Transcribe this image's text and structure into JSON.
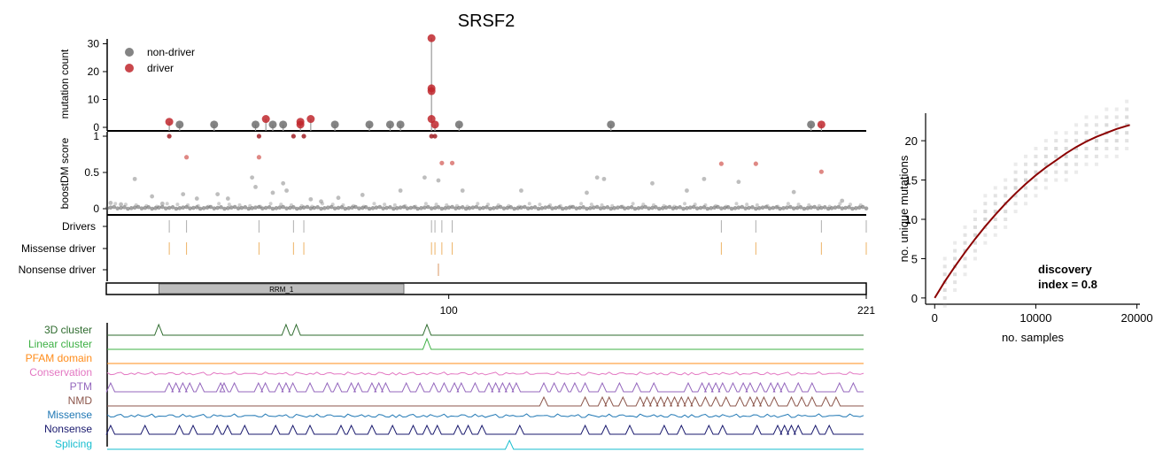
{
  "title": "SRSF2",
  "colors": {
    "nondriver": "#6e6e6e",
    "driver": "#c0272d",
    "missense": "#e9a040",
    "nonsense": "#d07a3a",
    "domain_fill": "#bdbdbd",
    "curve": "#8b0000",
    "tracks": {
      "3D cluster": "#2e6b2e",
      "Linear cluster": "#3cb043",
      "PFAM domain": "#ff8c1a",
      "Conservation": "#e377c2",
      "PTM": "#9467bd",
      "NMD": "#8c564b",
      "Missense": "#1f77b4",
      "Nonsense": "#1a1a6e",
      "Splicing": "#17becf"
    }
  },
  "chart_data": [
    {
      "type": "scatter",
      "name": "mutation-lollipop",
      "ylabel": "mutation count",
      "yticks": [
        0,
        10,
        20,
        30
      ],
      "xlim": [
        1,
        221
      ],
      "ylim": [
        0,
        33
      ],
      "legend": {
        "placement": "top-left",
        "entries": [
          "non-driver",
          "driver"
        ]
      },
      "points": [
        {
          "pos": 19,
          "count": 2,
          "driver": true
        },
        {
          "pos": 22,
          "count": 1,
          "driver": false
        },
        {
          "pos": 32,
          "count": 1,
          "driver": false
        },
        {
          "pos": 44,
          "count": 1,
          "driver": false
        },
        {
          "pos": 47,
          "count": 3,
          "driver": true
        },
        {
          "pos": 49,
          "count": 1,
          "driver": false
        },
        {
          "pos": 52,
          "count": 1,
          "driver": false
        },
        {
          "pos": 57,
          "count": 1,
          "driver": true
        },
        {
          "pos": 57,
          "count": 2,
          "driver": true
        },
        {
          "pos": 60,
          "count": 3,
          "driver": true
        },
        {
          "pos": 67,
          "count": 1,
          "driver": false
        },
        {
          "pos": 77,
          "count": 1,
          "driver": false
        },
        {
          "pos": 83,
          "count": 1,
          "driver": false
        },
        {
          "pos": 86,
          "count": 1,
          "driver": false
        },
        {
          "pos": 95,
          "count": 3,
          "driver": true
        },
        {
          "pos": 95,
          "count": 13,
          "driver": true
        },
        {
          "pos": 95,
          "count": 14,
          "driver": true
        },
        {
          "pos": 95,
          "count": 32,
          "driver": true
        },
        {
          "pos": 96,
          "count": 1,
          "driver": true
        },
        {
          "pos": 103,
          "count": 1,
          "driver": false
        },
        {
          "pos": 147,
          "count": 1,
          "driver": false
        },
        {
          "pos": 205,
          "count": 1,
          "driver": false
        },
        {
          "pos": 208,
          "count": 1,
          "driver": true
        }
      ]
    },
    {
      "type": "scatter",
      "name": "boostdm-score",
      "ylabel": "boostDM score",
      "yticks": [
        0,
        0.5,
        1
      ],
      "ytick_labels": [
        "0",
        "0.5",
        "1"
      ],
      "ylim": [
        -0.05,
        1.05
      ],
      "driver_points": [
        {
          "pos": 19,
          "score": 1.0
        },
        {
          "pos": 24,
          "score": 0.71
        },
        {
          "pos": 45,
          "score": 1.0
        },
        {
          "pos": 45,
          "score": 0.71
        },
        {
          "pos": 55,
          "score": 1.0
        },
        {
          "pos": 58,
          "score": 1.0
        },
        {
          "pos": 95,
          "score": 1.0
        },
        {
          "pos": 96,
          "score": 1.0
        },
        {
          "pos": 98,
          "score": 0.63
        },
        {
          "pos": 101,
          "score": 0.63
        },
        {
          "pos": 179,
          "score": 0.62
        },
        {
          "pos": 189,
          "score": 0.62
        },
        {
          "pos": 208,
          "score": 0.51
        }
      ],
      "elevated_points": [
        {
          "pos": 2,
          "score": 0.08
        },
        {
          "pos": 5,
          "score": 0.06
        },
        {
          "pos": 9,
          "score": 0.41
        },
        {
          "pos": 14,
          "score": 0.17
        },
        {
          "pos": 17,
          "score": 0.07
        },
        {
          "pos": 23,
          "score": 0.2
        },
        {
          "pos": 27,
          "score": 0.14
        },
        {
          "pos": 33,
          "score": 0.2
        },
        {
          "pos": 36,
          "score": 0.14
        },
        {
          "pos": 43,
          "score": 0.43
        },
        {
          "pos": 44,
          "score": 0.3
        },
        {
          "pos": 49,
          "score": 0.22
        },
        {
          "pos": 52,
          "score": 0.35
        },
        {
          "pos": 53,
          "score": 0.25
        },
        {
          "pos": 60,
          "score": 0.13
        },
        {
          "pos": 63,
          "score": 0.1
        },
        {
          "pos": 68,
          "score": 0.15
        },
        {
          "pos": 75,
          "score": 0.19
        },
        {
          "pos": 86,
          "score": 0.25
        },
        {
          "pos": 93,
          "score": 0.43
        },
        {
          "pos": 97,
          "score": 0.39
        },
        {
          "pos": 104,
          "score": 0.25
        },
        {
          "pos": 121,
          "score": 0.25
        },
        {
          "pos": 140,
          "score": 0.22
        },
        {
          "pos": 143,
          "score": 0.43
        },
        {
          "pos": 145,
          "score": 0.41
        },
        {
          "pos": 159,
          "score": 0.35
        },
        {
          "pos": 169,
          "score": 0.25
        },
        {
          "pos": 174,
          "score": 0.41
        },
        {
          "pos": 184,
          "score": 0.37
        },
        {
          "pos": 200,
          "score": 0.23
        },
        {
          "pos": 214,
          "score": 0.11
        }
      ]
    },
    {
      "type": "table",
      "name": "driver-tracks",
      "rows": [
        "Drivers",
        "Missense driver",
        "Nonsense driver"
      ],
      "drivers": [
        19,
        24,
        45,
        55,
        58,
        95,
        96,
        98,
        101,
        179,
        189,
        208,
        221
      ],
      "missense_driver": [
        19,
        24,
        45,
        55,
        58,
        95,
        96,
        98,
        101,
        179,
        189,
        208,
        221
      ],
      "nonsense_driver": [
        97
      ],
      "domain": {
        "label": "RRM_1",
        "start": 16,
        "end": 87
      },
      "xticks": [
        100,
        221
      ]
    },
    {
      "type": "line",
      "name": "feature-tracks",
      "tracks": [
        {
          "name": "3D cluster",
          "peaks": [
            16,
            53,
            56,
            94
          ]
        },
        {
          "name": "Linear cluster",
          "peaks": [
            94
          ]
        },
        {
          "name": "PFAM domain",
          "peaks": []
        },
        {
          "name": "Conservation",
          "peaks": []
        },
        {
          "name": "PTM",
          "peaks": [
            2,
            19,
            21,
            23,
            25,
            28,
            34,
            35,
            38,
            45,
            47,
            51,
            53,
            55,
            60,
            65,
            68,
            72,
            74,
            78,
            80,
            82,
            88,
            92,
            96,
            99,
            102,
            104,
            108,
            112,
            114,
            116,
            118,
            120,
            128,
            131,
            134,
            137,
            140,
            145,
            150,
            155,
            160,
            170,
            174,
            176,
            178,
            180,
            183,
            186,
            188,
            191,
            194,
            196,
            198,
            202,
            206,
            214,
            218
          ]
        },
        {
          "name": "NMD",
          "peaks": [
            128,
            140,
            145,
            147,
            151,
            156,
            158,
            160,
            162,
            164,
            166,
            168,
            170,
            172,
            175,
            178,
            181,
            185,
            188,
            190,
            192,
            195,
            200,
            203,
            206,
            210,
            213
          ]
        },
        {
          "name": "Missense",
          "peaks": []
        },
        {
          "name": "Nonsense",
          "peaks": [
            2,
            12,
            22,
            26,
            33,
            36,
            41,
            50,
            55,
            60,
            69,
            72,
            78,
            84,
            90,
            94,
            97,
            103,
            106,
            110,
            121,
            140,
            146,
            153,
            163,
            168,
            176,
            180,
            190,
            196,
            198,
            200,
            202,
            207,
            211
          ]
        },
        {
          "name": "Splicing",
          "peaks": [
            118
          ]
        }
      ]
    },
    {
      "type": "scatter",
      "name": "discovery-curve",
      "xlabel": "no. samples",
      "ylabel": "no. unique mutations",
      "xticks": [
        0,
        10000,
        20000
      ],
      "yticks": [
        0,
        5,
        10,
        15,
        20
      ],
      "xlim": [
        -900,
        20300
      ],
      "ylim": [
        -0.8,
        23.5
      ],
      "curve": [
        [
          0,
          0
        ],
        [
          1000,
          2.1
        ],
        [
          2000,
          4.0
        ],
        [
          3000,
          5.8
        ],
        [
          4000,
          7.5
        ],
        [
          5000,
          9.1
        ],
        [
          6000,
          10.6
        ],
        [
          7000,
          12.0
        ],
        [
          8000,
          13.3
        ],
        [
          9000,
          14.5
        ],
        [
          10000,
          15.6
        ],
        [
          11000,
          16.6
        ],
        [
          12000,
          17.5
        ],
        [
          13000,
          18.4
        ],
        [
          14000,
          19.2
        ],
        [
          15000,
          19.9
        ],
        [
          16000,
          20.5
        ],
        [
          17000,
          21.0
        ],
        [
          18000,
          21.5
        ],
        [
          19300,
          22.0
        ]
      ],
      "annotation": [
        "discovery",
        "index = 0.8"
      ]
    }
  ]
}
